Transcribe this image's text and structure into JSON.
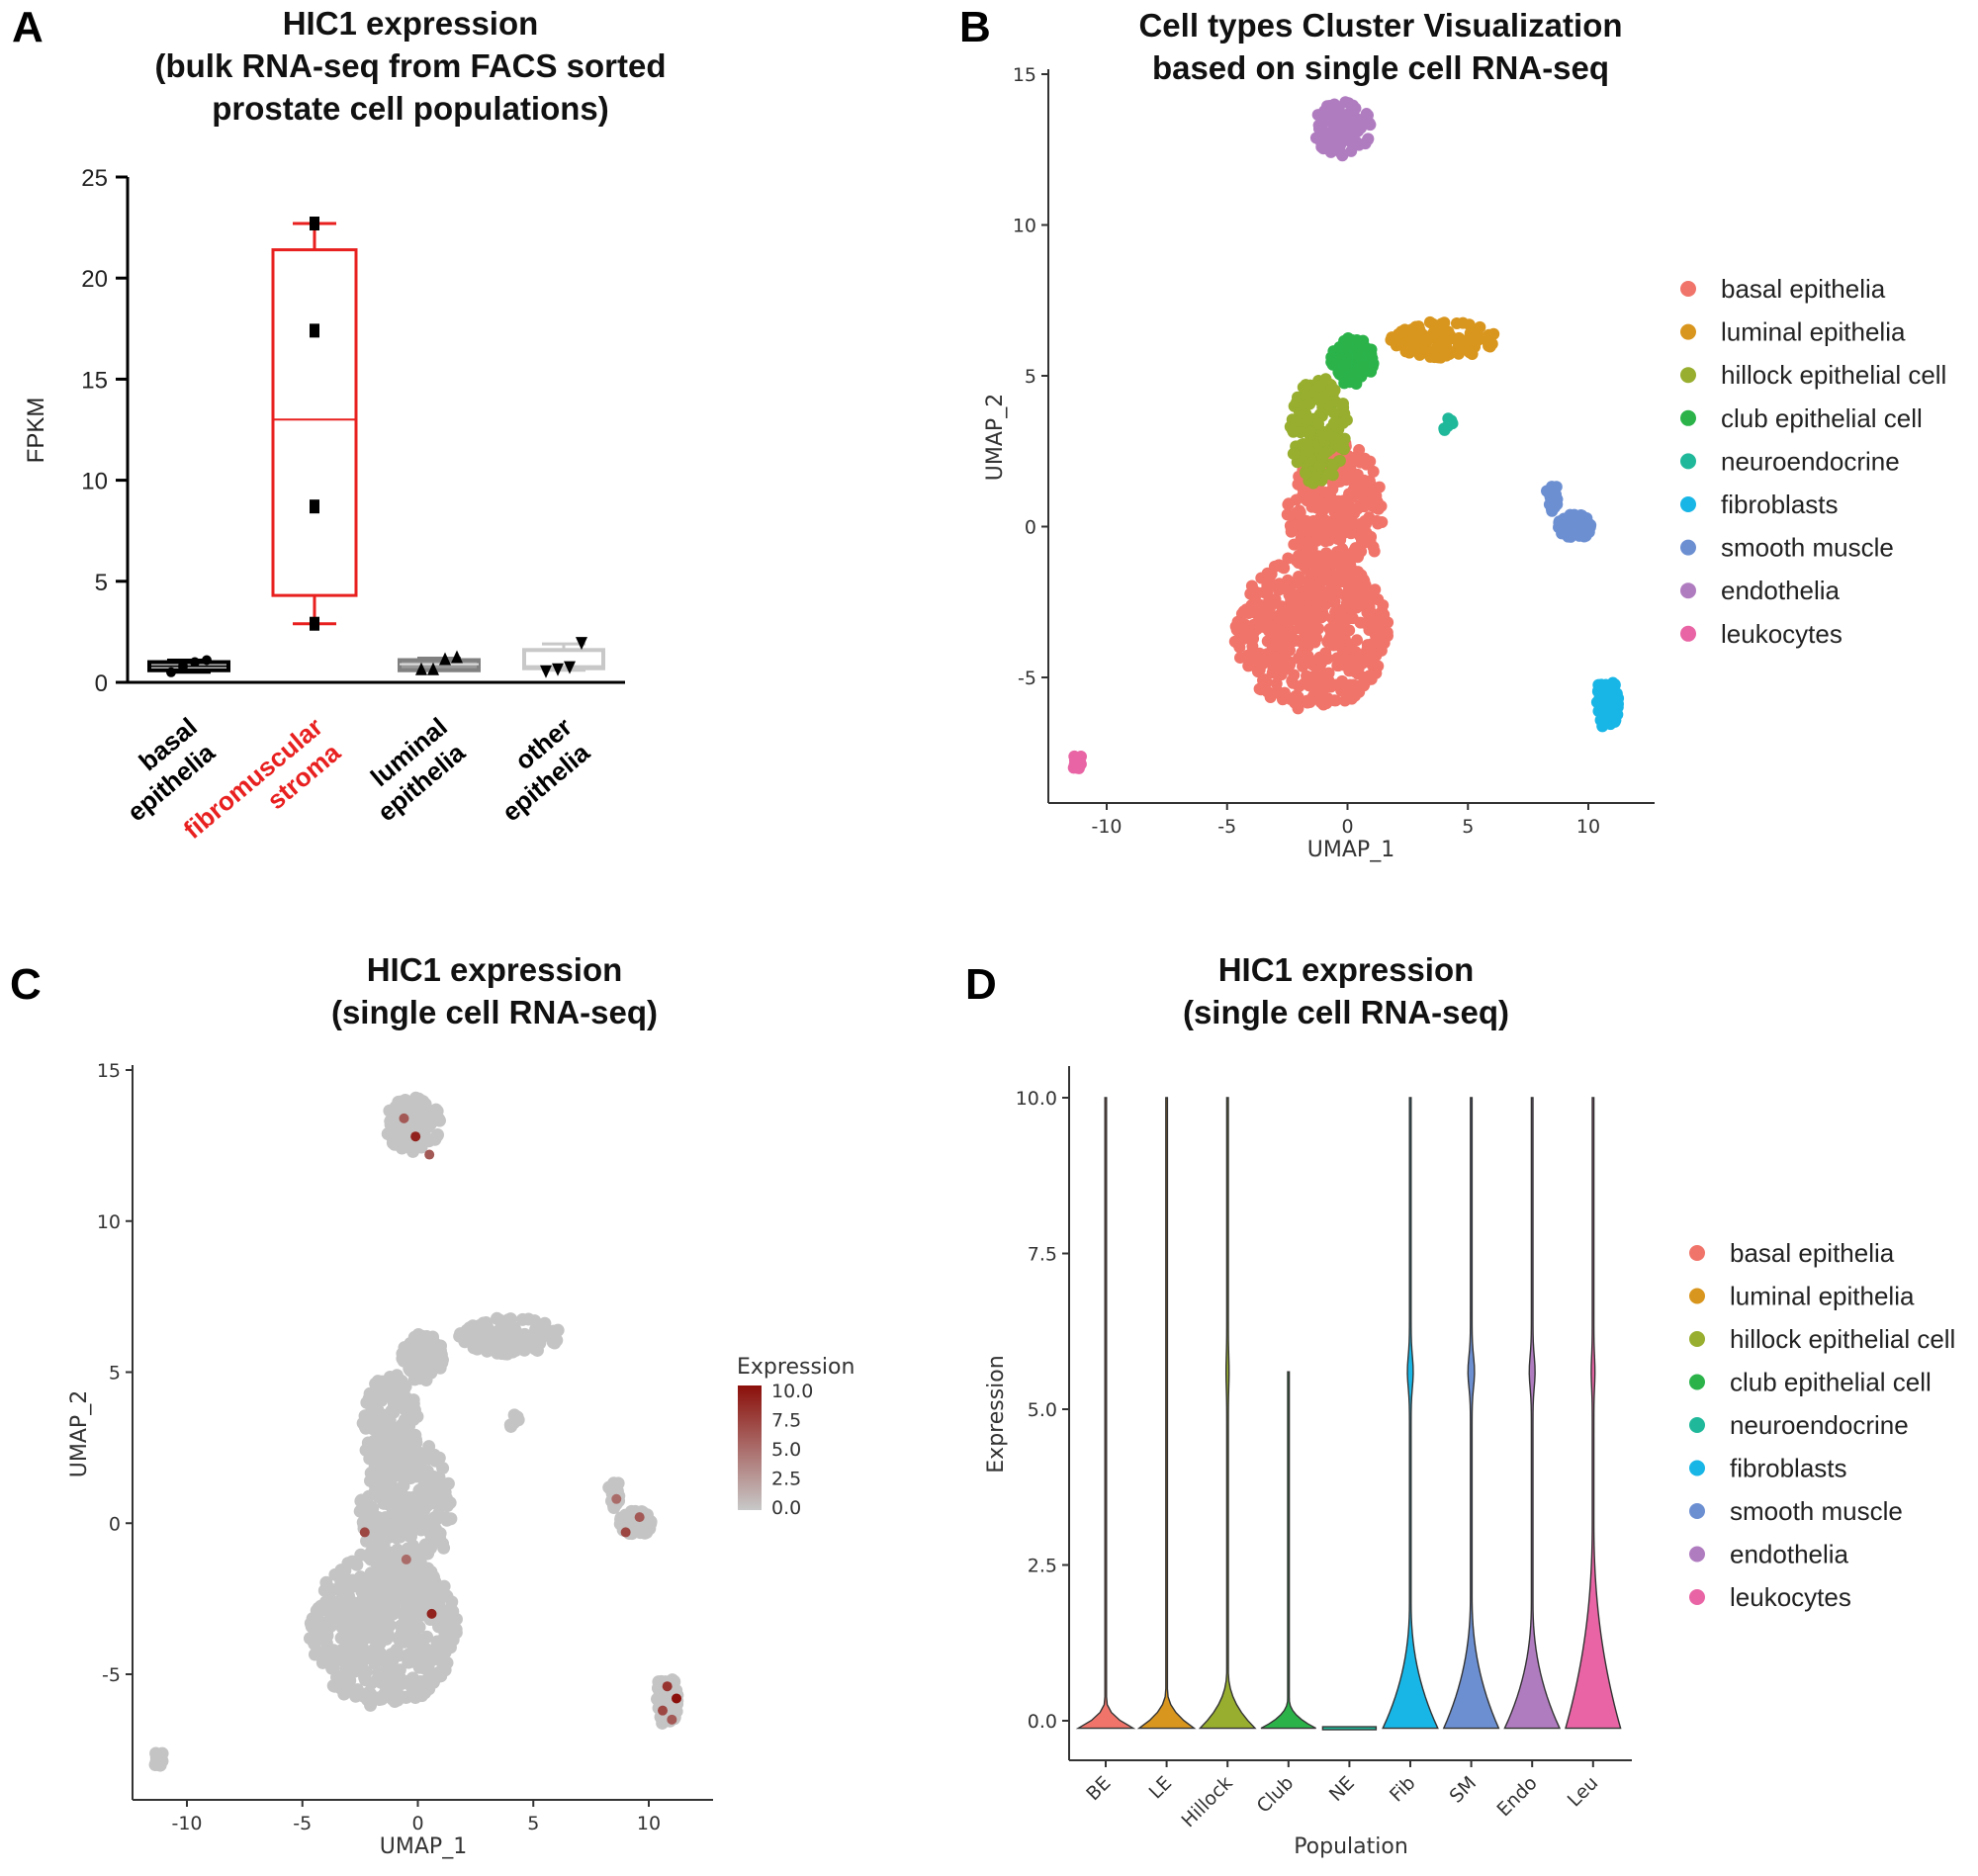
{
  "panels": {
    "A": {
      "letter": "A",
      "title_lines": [
        "HIC1 expression",
        "(bulk RNA-seq from FACS sorted",
        "prostate cell populations)"
      ]
    },
    "B": {
      "letter": "B",
      "title_lines": [
        "Cell types Cluster Visualization",
        "based on single cell RNA-seq"
      ]
    },
    "C": {
      "letter": "C",
      "title_lines": [
        "HIC1 expression",
        "(single cell RNA-seq)"
      ]
    },
    "D": {
      "letter": "D",
      "title_lines": [
        "HIC1 expression",
        "(single cell RNA-seq)"
      ]
    }
  },
  "legend_items": [
    {
      "label": "basal epithelia",
      "color": "#F0746A"
    },
    {
      "label": "luminal epithelia",
      "color": "#D9961E"
    },
    {
      "label": "hillock epithelial cell",
      "color": "#97AE2E"
    },
    {
      "label": "club epithelial cell",
      "color": "#2BB34A"
    },
    {
      "label": "neuroendocrine",
      "color": "#20B89A"
    },
    {
      "label": "fibroblasts",
      "color": "#18B6E6"
    },
    {
      "label": "smooth muscle",
      "color": "#6C8FD2"
    },
    {
      "label": "endothelia",
      "color": "#B07CC0"
    },
    {
      "label": "leukocytes",
      "color": "#E864A4"
    }
  ],
  "chart_data": [
    {
      "panel": "A",
      "type": "box",
      "ylabel": "FPKM",
      "ylim": [
        0,
        25
      ],
      "yticks": [
        "0",
        "5",
        "10",
        "15",
        "20",
        "25"
      ],
      "categories": [
        {
          "label_lines": [
            "basal",
            "epithelia"
          ],
          "label_color": "#000000",
          "box_color": "#000000",
          "marker": "circle",
          "points": [
            0.5,
            0.8,
            1.0,
            1.1
          ],
          "q1": 0.6,
          "median": 0.8,
          "q3": 1.0,
          "whisker_low": 0.5,
          "whisker_high": 1.1
        },
        {
          "label_lines": [
            "fibromuscular",
            "stroma"
          ],
          "label_color": "#E8201F",
          "box_color": "#E8201F",
          "marker": "square",
          "points": [
            2.9,
            8.7,
            17.4,
            22.7
          ],
          "q1": 4.3,
          "median": 13.0,
          "q3": 21.4,
          "whisker_low": 2.9,
          "whisker_high": 22.7
        },
        {
          "label_lines": [
            "luminal",
            "epithelia"
          ],
          "label_color": "#000000",
          "box_color": "#808080",
          "marker": "triangle-up",
          "points": [
            0.6,
            0.6,
            1.1,
            1.2
          ],
          "q1": 0.6,
          "median": 0.9,
          "q3": 1.1,
          "whisker_low": 0.6,
          "whisker_high": 1.2
        },
        {
          "label_lines": [
            "other",
            "epithelia"
          ],
          "label_color": "#000000",
          "box_color": "#C8C8C8",
          "marker": "triangle-down",
          "points": [
            0.6,
            0.7,
            0.8,
            2.0
          ],
          "q1": 0.7,
          "median": 0.8,
          "q3": 1.6,
          "whisker_low": 0.6,
          "whisker_high": 1.9
        }
      ]
    },
    {
      "panel": "B",
      "type": "scatter",
      "xlabel": "UMAP_1",
      "ylabel": "UMAP_2",
      "xlim": [
        -12,
        13
      ],
      "ylim": [
        -9,
        15
      ],
      "xticks": [
        "-10",
        "-5",
        "0",
        "5",
        "10"
      ],
      "yticks": [
        "-5",
        "0",
        "5",
        "10",
        "15"
      ],
      "legend": "right",
      "clusters": [
        {
          "type": "basal epithelia",
          "cx": -1.5,
          "cy": -3.5,
          "rx": 3.2,
          "ry": 2.6,
          "n": 500
        },
        {
          "type": "basal epithelia",
          "cx": -0.5,
          "cy": 0.5,
          "rx": 2.0,
          "ry": 2.4,
          "n": 300
        },
        {
          "type": "hillock epithelial cell",
          "cx": -1.2,
          "cy": 3.2,
          "rx": 1.2,
          "ry": 1.8,
          "n": 160
        },
        {
          "type": "club epithelial cell",
          "cx": 0.2,
          "cy": 5.5,
          "rx": 0.9,
          "ry": 0.8,
          "n": 110
        },
        {
          "type": "luminal epithelia",
          "cx": 4.0,
          "cy": 6.2,
          "rx": 2.2,
          "ry": 0.6,
          "n": 120
        },
        {
          "type": "neuroendocrine",
          "cx": 4.2,
          "cy": 3.3,
          "rx": 0.2,
          "ry": 0.3,
          "n": 6
        },
        {
          "type": "endothelia",
          "cx": -0.2,
          "cy": 13.2,
          "rx": 1.2,
          "ry": 0.9,
          "n": 90
        },
        {
          "type": "smooth muscle",
          "cx": 9.4,
          "cy": 0.0,
          "rx": 0.7,
          "ry": 0.45,
          "n": 60
        },
        {
          "type": "smooth muscle",
          "cx": 8.5,
          "cy": 1.0,
          "rx": 0.25,
          "ry": 0.5,
          "n": 20
        },
        {
          "type": "fibroblasts",
          "cx": 10.8,
          "cy": -5.8,
          "rx": 0.45,
          "ry": 1.0,
          "n": 70
        },
        {
          "type": "leukocytes",
          "cx": -11.2,
          "cy": -7.8,
          "rx": 0.25,
          "ry": 0.3,
          "n": 15
        }
      ]
    },
    {
      "panel": "C",
      "type": "scatter",
      "xlabel": "UMAP_1",
      "ylabel": "UMAP_2",
      "xlim": [
        -12,
        13
      ],
      "ylim": [
        -9,
        15
      ],
      "xticks": [
        "-10",
        "-5",
        "0",
        "5",
        "10"
      ],
      "yticks": [
        "-5",
        "0",
        "5",
        "10",
        "15"
      ],
      "colorbar": {
        "title": "Expression",
        "ticks": [
          "10.0",
          "7.5",
          "5.0",
          "2.5",
          "0.0"
        ],
        "low_color": "#C8C8C8",
        "high_color": "#8B0F0A",
        "range": [
          0,
          10
        ]
      },
      "high_points": [
        {
          "x": -0.1,
          "y": 12.8,
          "v": 9
        },
        {
          "x": -0.6,
          "y": 13.4,
          "v": 6
        },
        {
          "x": 0.5,
          "y": 12.2,
          "v": 6
        },
        {
          "x": -2.3,
          "y": -0.3,
          "v": 7
        },
        {
          "x": -0.5,
          "y": -1.2,
          "v": 5
        },
        {
          "x": 0.6,
          "y": -3.0,
          "v": 9
        },
        {
          "x": 9.0,
          "y": -0.3,
          "v": 7
        },
        {
          "x": 9.6,
          "y": 0.2,
          "v": 6
        },
        {
          "x": 8.6,
          "y": 0.8,
          "v": 5
        },
        {
          "x": 11.2,
          "y": -5.8,
          "v": 10
        },
        {
          "x": 10.8,
          "y": -5.4,
          "v": 8
        },
        {
          "x": 10.6,
          "y": -6.2,
          "v": 7
        },
        {
          "x": 11.0,
          "y": -6.5,
          "v": 6
        }
      ]
    },
    {
      "panel": "D",
      "type": "violin",
      "xlabel": "Population",
      "ylabel": "Expression",
      "ylim": [
        -0.6,
        10.5
      ],
      "yticks": [
        "0.0",
        "2.5",
        "5.0",
        "7.5",
        "10.0"
      ],
      "categories": [
        {
          "label": "BE",
          "color": "#F0746A",
          "max": 10,
          "body_top": 0.35,
          "body_width": 0.9,
          "mid_bulge": 0
        },
        {
          "label": "LE",
          "color": "#D9961E",
          "max": 10,
          "body_top": 0.5,
          "body_width": 0.9,
          "mid_bulge": 0
        },
        {
          "label": "Hillock",
          "color": "#97AE2E",
          "max": 10,
          "body_top": 0.8,
          "body_width": 0.9,
          "mid_bulge": 0.02
        },
        {
          "label": "Club",
          "color": "#2BB34A",
          "max": 5.6,
          "body_top": 0.35,
          "body_width": 0.9,
          "mid_bulge": 0
        },
        {
          "label": "NE",
          "color": "#20B89A",
          "max": 0,
          "body_top": 0,
          "body_width": 0.9,
          "mid_bulge": 0
        },
        {
          "label": "Fib",
          "color": "#18B6E6",
          "max": 10,
          "body_top": 1.9,
          "body_width": 0.9,
          "mid_bulge": 0.06
        },
        {
          "label": "SM",
          "color": "#6C8FD2",
          "max": 10,
          "body_top": 2.0,
          "body_width": 0.9,
          "mid_bulge": 0.07
        },
        {
          "label": "Endo",
          "color": "#B07CC0",
          "max": 10,
          "body_top": 1.9,
          "body_width": 0.9,
          "mid_bulge": 0.06
        },
        {
          "label": "Leu",
          "color": "#E864A4",
          "max": 10,
          "body_top": 3.2,
          "body_width": 0.9,
          "mid_bulge": 0.03
        }
      ]
    }
  ]
}
